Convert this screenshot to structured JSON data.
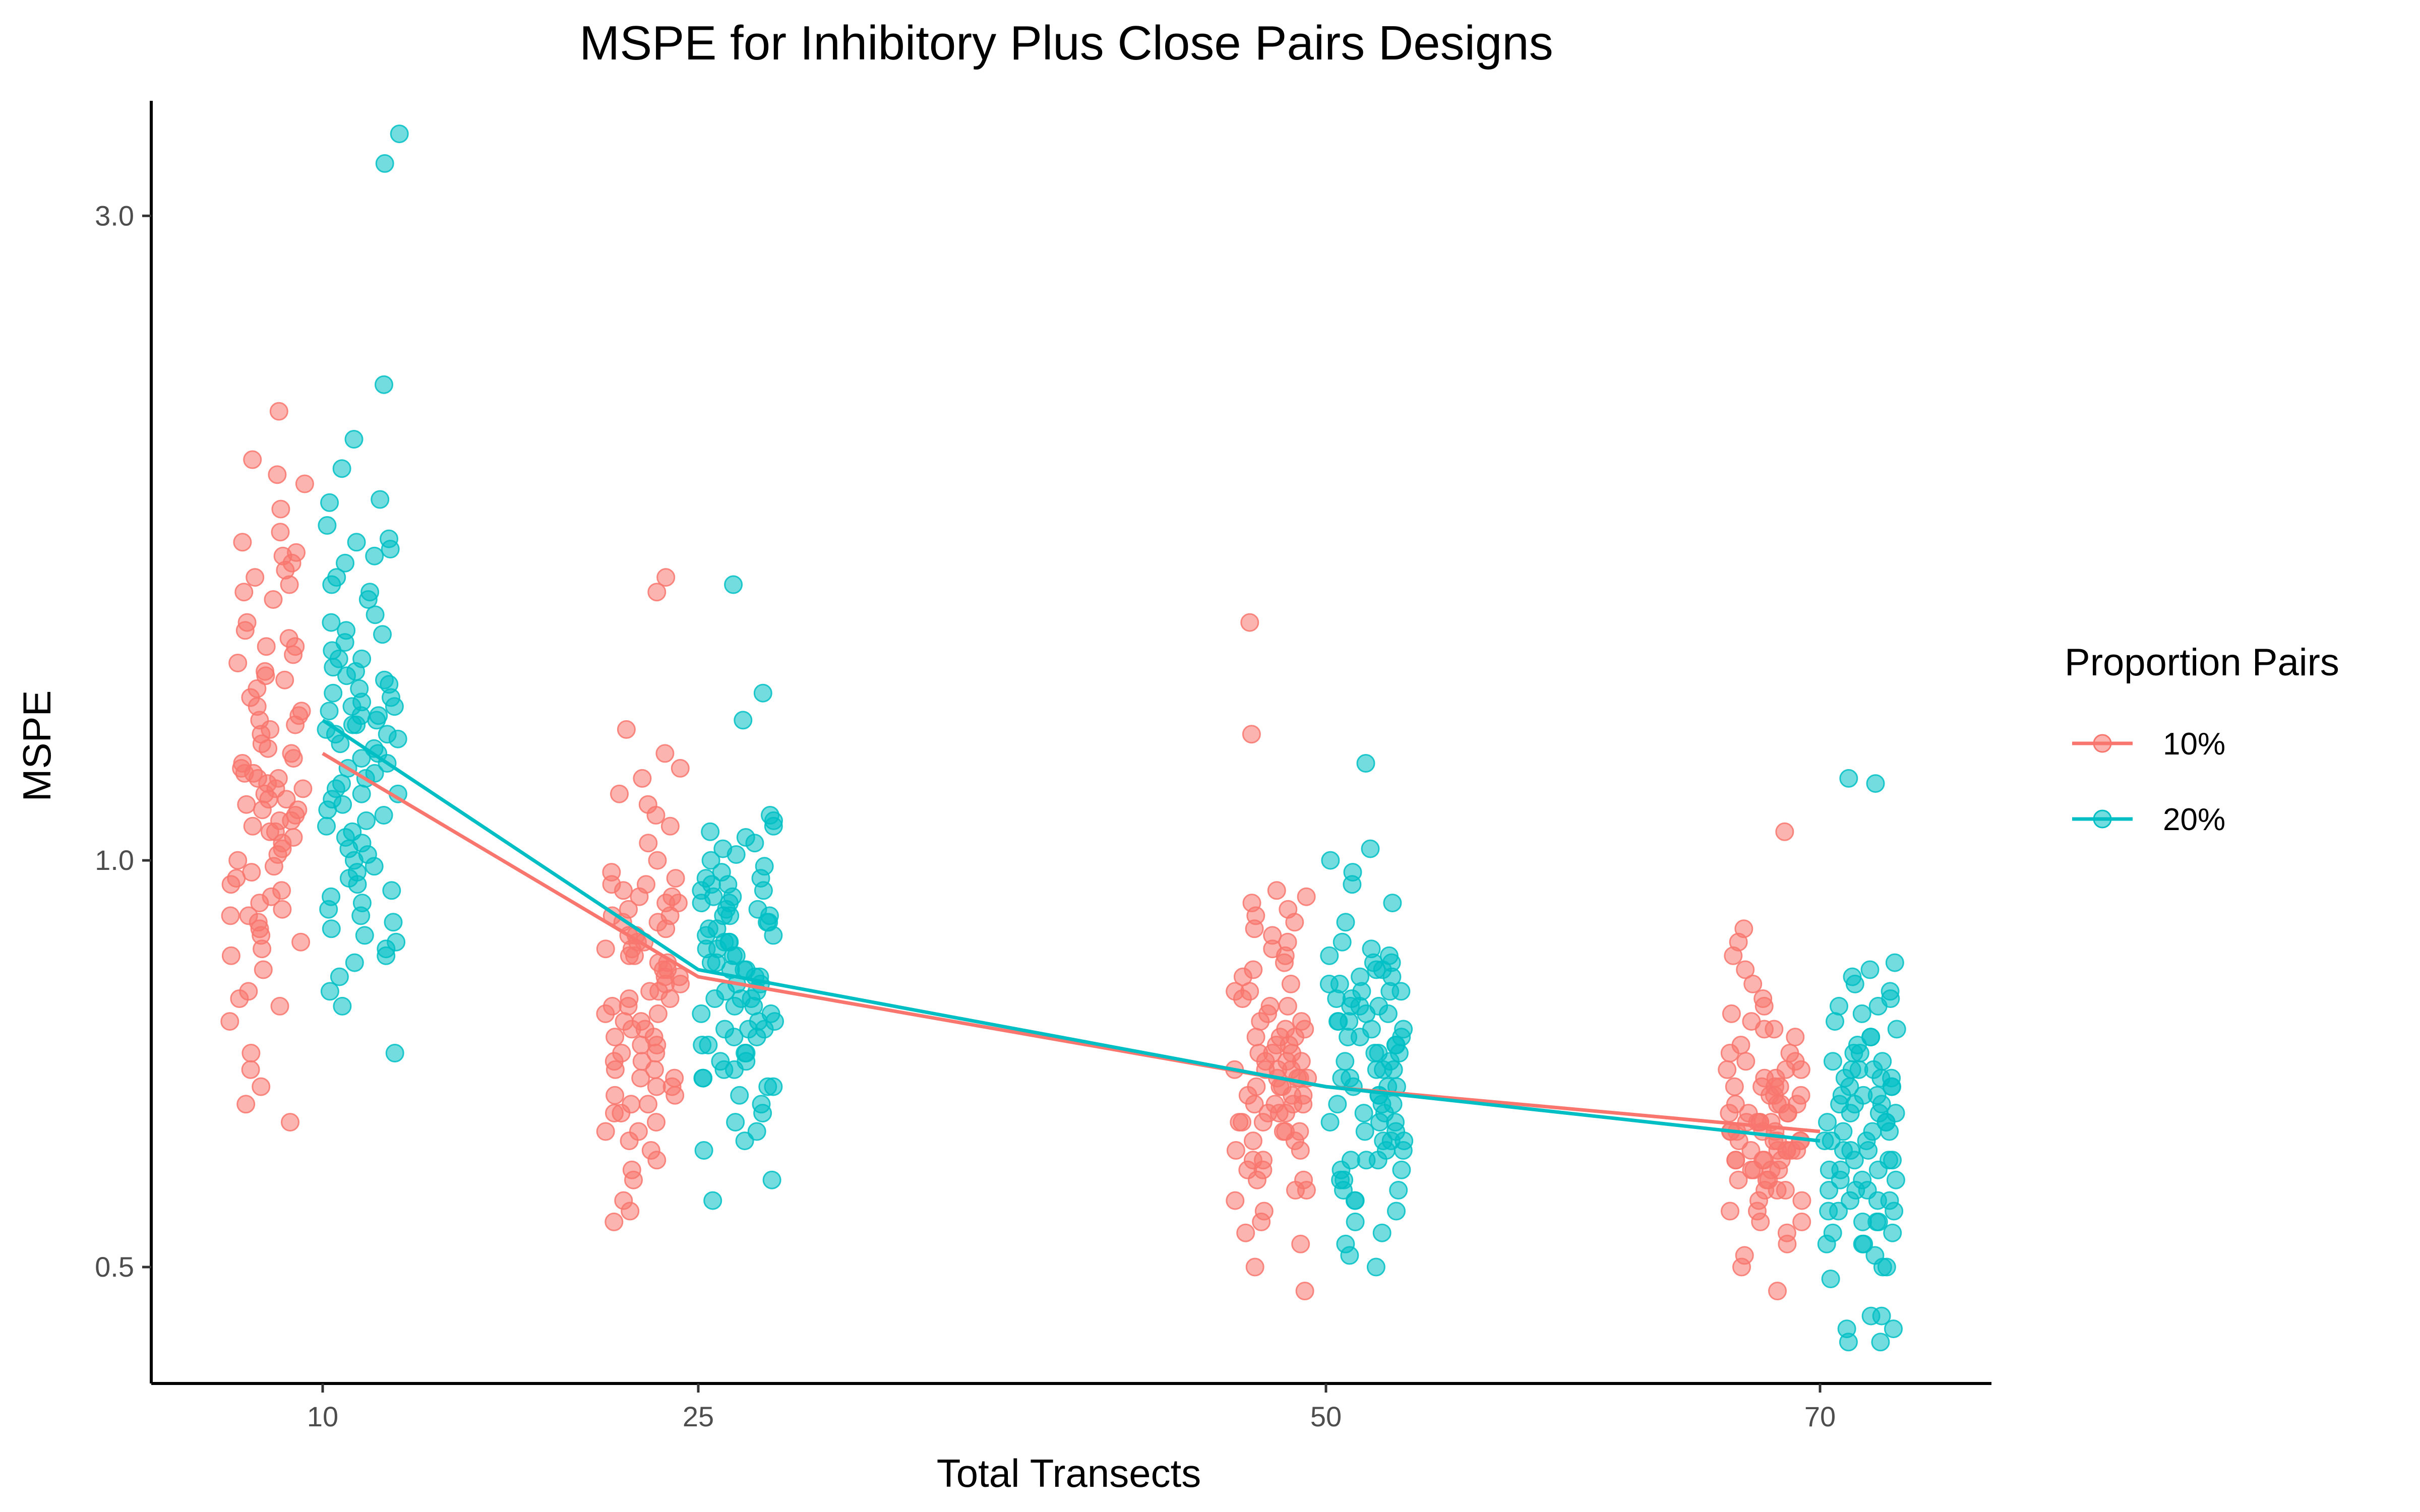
{
  "chart_data": {
    "type": "scatter",
    "title": "MSPE for Inhibitory Plus Close Pairs Designs",
    "xlabel": "Total Transects",
    "ylabel": "MSPE",
    "y_scale": "log",
    "ylim": [
      0.41,
      3.65
    ],
    "y_ticks": [
      0.5,
      1.0,
      3.0
    ],
    "y_tick_labels": [
      "0.5",
      "1.0",
      "3.0"
    ],
    "x_categories": [
      "10",
      "25",
      "50",
      "70"
    ],
    "grid": false,
    "legend": {
      "title": "Proportion Pairs",
      "position": "right",
      "entries": [
        "10%",
        "20%"
      ]
    },
    "series": [
      {
        "name": "10%",
        "color": "#F8766D",
        "mean_line": {
          "x": [
            "10",
            "25",
            "50",
            "70"
          ],
          "y": [
            1.2,
            0.82,
            0.68,
            0.63
          ]
        },
        "points": {
          "10": [
            2.15,
            1.98,
            1.93,
            1.9,
            1.82,
            1.75,
            1.72,
            1.69,
            1.68,
            1.66,
            1.64,
            1.62,
            1.6,
            1.58,
            1.56,
            1.5,
            1.48,
            1.46,
            1.44,
            1.42,
            1.4,
            1.38,
            1.36,
            1.34,
            1.32,
            1.3,
            1.28,
            1.26,
            1.24,
            1.22,
            1.2,
            1.18,
            1.17,
            1.16,
            1.15,
            1.14,
            1.13,
            1.12,
            1.11,
            1.1,
            1.09,
            1.08,
            1.07,
            1.06,
            1.05,
            1.04,
            1.02,
            1.0,
            0.99,
            0.97,
            0.95,
            0.93,
            0.92,
            0.91,
            0.9,
            0.89,
            0.88,
            0.87,
            0.86,
            0.85,
            0.8,
            0.79,
            0.78,
            0.76,
            0.72,
            0.7,
            0.68,
            0.66,
            0.64,
            1.37,
            1.25,
            1.19,
            1.13,
            1.03,
            0.96,
            0.94,
            0.83,
            1.21,
            1.07,
            0.98,
            1.44,
            1.29,
            1.16,
            1.11,
            1.09,
            1.05,
            0.91,
            1.01,
            1.15,
            1.27
          ],
          "25": [
            1.62,
            1.58,
            1.25,
            1.2,
            1.17,
            1.15,
            1.12,
            1.1,
            1.08,
            1.06,
            1.03,
            1.0,
            0.98,
            0.97,
            0.96,
            0.95,
            0.94,
            0.93,
            0.92,
            0.91,
            0.9,
            0.89,
            0.88,
            0.87,
            0.86,
            0.85,
            0.84,
            0.83,
            0.82,
            0.81,
            0.8,
            0.79,
            0.78,
            0.77,
            0.76,
            0.75,
            0.74,
            0.73,
            0.72,
            0.71,
            0.7,
            0.69,
            0.68,
            0.67,
            0.66,
            0.65,
            0.64,
            0.63,
            0.62,
            0.6,
            0.59,
            0.58,
            0.56,
            0.55,
            0.54,
            0.96,
            0.93,
            0.9,
            0.87,
            0.84,
            0.81,
            0.79,
            0.76,
            0.73,
            0.7,
            0.68,
            0.66,
            0.63,
            0.61,
            0.85,
            0.78,
            0.74,
            0.71,
            0.65,
            0.83,
            0.8,
            0.77,
            0.75,
            0.72,
            0.69,
            0.67,
            0.88,
            0.91,
            0.94,
            0.86,
            0.82
          ],
          "50": [
            1.5,
            1.24,
            0.95,
            0.94,
            0.93,
            0.92,
            0.91,
            0.9,
            0.89,
            0.88,
            0.87,
            0.86,
            0.85,
            0.84,
            0.83,
            0.82,
            0.81,
            0.8,
            0.79,
            0.78,
            0.77,
            0.76,
            0.75,
            0.74,
            0.73,
            0.72,
            0.71,
            0.7,
            0.69,
            0.68,
            0.67,
            0.66,
            0.65,
            0.64,
            0.63,
            0.62,
            0.61,
            0.6,
            0.59,
            0.58,
            0.57,
            0.56,
            0.55,
            0.54,
            0.53,
            0.52,
            0.5,
            0.48,
            0.71,
            0.69,
            0.67,
            0.65,
            0.63,
            0.61,
            0.74,
            0.72,
            0.7,
            0.68,
            0.66,
            0.64,
            0.76,
            0.73,
            0.7,
            0.68,
            0.66,
            0.62,
            0.78,
            0.75,
            0.72,
            0.69,
            0.67,
            0.64,
            0.8,
            0.71,
            0.66,
            0.6,
            0.58,
            0.69,
            0.7,
            0.63,
            0.65,
            0.59,
            0.57,
            0.74
          ],
          "70": [
            1.05,
            0.89,
            0.87,
            0.85,
            0.83,
            0.81,
            0.79,
            0.78,
            0.77,
            0.76,
            0.75,
            0.74,
            0.73,
            0.72,
            0.71,
            0.7,
            0.69,
            0.68,
            0.67,
            0.66,
            0.65,
            0.64,
            0.63,
            0.62,
            0.61,
            0.6,
            0.59,
            0.58,
            0.57,
            0.56,
            0.55,
            0.54,
            0.53,
            0.52,
            0.51,
            0.5,
            0.48,
            0.66,
            0.64,
            0.63,
            0.62,
            0.61,
            0.6,
            0.59,
            0.58,
            0.57,
            0.68,
            0.66,
            0.65,
            0.64,
            0.63,
            0.62,
            0.61,
            0.6,
            0.59,
            0.7,
            0.68,
            0.67,
            0.65,
            0.64,
            0.62,
            0.61,
            0.6,
            0.72,
            0.7,
            0.69,
            0.66,
            0.63,
            0.61,
            0.59,
            0.57,
            0.75,
            0.71,
            0.68,
            0.65,
            0.62,
            0.6,
            0.58,
            0.56,
            0.55,
            0.54,
            0.63,
            0.61,
            0.64,
            0.67
          ]
        }
      },
      {
        "name": "20%",
        "color": "#00BFC4",
        "mean_line": {
          "x": [
            "10",
            "25",
            "50",
            "70"
          ],
          "y": [
            1.27,
            0.83,
            0.68,
            0.62
          ]
        },
        "points": {
          "10": [
            3.45,
            3.28,
            2.25,
            2.05,
            1.95,
            1.85,
            1.84,
            1.77,
            1.73,
            1.72,
            1.7,
            1.68,
            1.66,
            1.62,
            1.6,
            1.58,
            1.56,
            1.52,
            1.5,
            1.48,
            1.45,
            1.43,
            1.41,
            1.39,
            1.37,
            1.35,
            1.33,
            1.31,
            1.3,
            1.29,
            1.28,
            1.27,
            1.26,
            1.25,
            1.24,
            1.22,
            1.2,
            1.18,
            1.16,
            1.14,
            1.12,
            1.1,
            1.08,
            1.06,
            1.04,
            1.02,
            1.0,
            0.98,
            0.96,
            0.94,
            0.92,
            0.9,
            0.89,
            0.88,
            0.87,
            0.85,
            0.82,
            0.8,
            0.78,
            0.72,
            1.36,
            1.3,
            1.23,
            1.17,
            1.11,
            1.05,
            0.99,
            0.93,
            1.34,
            1.28,
            1.21,
            1.15,
            1.09,
            1.01,
            0.95,
            1.47,
            1.32,
            1.26,
            1.19,
            1.13,
            1.07,
            0.97,
            0.91,
            0.86,
            1.41,
            1.38,
            1.24,
            1.12,
            1.03,
            0.84
          ],
          "25": [
            1.6,
            1.33,
            1.27,
            1.08,
            1.07,
            1.06,
            1.05,
            1.04,
            1.03,
            1.02,
            1.01,
            1.0,
            0.99,
            0.98,
            0.97,
            0.96,
            0.95,
            0.94,
            0.93,
            0.92,
            0.91,
            0.9,
            0.89,
            0.88,
            0.87,
            0.86,
            0.85,
            0.84,
            0.83,
            0.82,
            0.81,
            0.8,
            0.79,
            0.78,
            0.77,
            0.76,
            0.75,
            0.74,
            0.73,
            0.72,
            0.71,
            0.7,
            0.69,
            0.68,
            0.67,
            0.66,
            0.65,
            0.64,
            0.63,
            0.62,
            0.61,
            0.58,
            0.56,
            0.95,
            0.93,
            0.91,
            0.89,
            0.87,
            0.85,
            0.83,
            0.81,
            0.79,
            0.77,
            0.75,
            0.73,
            0.71,
            0.69,
            0.96,
            0.92,
            0.88,
            0.84,
            0.8,
            0.76,
            0.72,
            0.68,
            0.94,
            0.9,
            0.86,
            0.82,
            0.78,
            0.74,
            0.7,
            0.97,
            0.91,
            0.87,
            0.83,
            0.79,
            0.75
          ],
          "50": [
            1.18,
            1.02,
            1.0,
            0.98,
            0.96,
            0.93,
            0.9,
            0.87,
            0.86,
            0.85,
            0.84,
            0.83,
            0.82,
            0.81,
            0.8,
            0.79,
            0.78,
            0.77,
            0.76,
            0.75,
            0.74,
            0.73,
            0.72,
            0.71,
            0.7,
            0.69,
            0.68,
            0.67,
            0.66,
            0.65,
            0.64,
            0.63,
            0.62,
            0.61,
            0.6,
            0.59,
            0.58,
            0.57,
            0.56,
            0.55,
            0.54,
            0.53,
            0.52,
            0.51,
            0.5,
            0.84,
            0.82,
            0.8,
            0.78,
            0.76,
            0.74,
            0.72,
            0.7,
            0.68,
            0.66,
            0.64,
            0.62,
            0.6,
            0.83,
            0.81,
            0.79,
            0.77,
            0.75,
            0.73,
            0.71,
            0.69,
            0.67,
            0.65,
            0.63,
            0.61,
            0.59,
            0.57,
            0.85,
            0.8,
            0.76,
            0.72,
            0.68,
            0.64,
            0.6,
            0.56,
            0.78,
            0.74,
            0.7,
            0.66,
            0.62,
            0.58
          ],
          "70": [
            1.15,
            1.14,
            0.84,
            0.83,
            0.82,
            0.81,
            0.8,
            0.79,
            0.78,
            0.77,
            0.76,
            0.75,
            0.74,
            0.73,
            0.72,
            0.71,
            0.7,
            0.69,
            0.68,
            0.67,
            0.66,
            0.65,
            0.64,
            0.63,
            0.62,
            0.61,
            0.6,
            0.59,
            0.58,
            0.57,
            0.56,
            0.55,
            0.54,
            0.53,
            0.52,
            0.51,
            0.5,
            0.49,
            0.46,
            0.45,
            0.44,
            0.46,
            0.45,
            0.44,
            0.7,
            0.68,
            0.66,
            0.64,
            0.62,
            0.6,
            0.58,
            0.56,
            0.54,
            0.52,
            0.69,
            0.67,
            0.65,
            0.63,
            0.61,
            0.59,
            0.57,
            0.55,
            0.53,
            0.71,
            0.69,
            0.67,
            0.65,
            0.63,
            0.61,
            0.59,
            0.57,
            0.55,
            0.78,
            0.74,
            0.7,
            0.66,
            0.62,
            0.58,
            0.54,
            0.5,
            0.72,
            0.68,
            0.64,
            0.6,
            0.56,
            0.52
          ]
        }
      }
    ]
  }
}
